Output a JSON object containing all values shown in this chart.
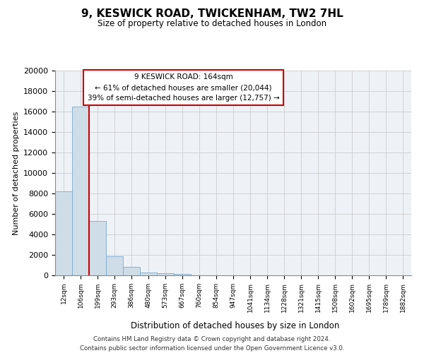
{
  "title": "9, KESWICK ROAD, TWICKENHAM, TW2 7HL",
  "subtitle": "Size of property relative to detached houses in London",
  "xlabel": "Distribution of detached houses by size in London",
  "ylabel": "Number of detached properties",
  "bar_labels": [
    "12sqm",
    "106sqm",
    "199sqm",
    "293sqm",
    "386sqm",
    "480sqm",
    "573sqm",
    "667sqm",
    "760sqm",
    "854sqm",
    "947sqm",
    "1041sqm",
    "1134sqm",
    "1228sqm",
    "1321sqm",
    "1415sqm",
    "1508sqm",
    "1602sqm",
    "1695sqm",
    "1789sqm",
    "1882sqm"
  ],
  "bar_values": [
    8200,
    16500,
    5300,
    1850,
    800,
    300,
    200,
    150,
    0,
    0,
    0,
    0,
    0,
    0,
    0,
    0,
    0,
    0,
    0,
    0,
    0
  ],
  "bar_color": "#cfdde8",
  "bar_edge_color": "#7aaacc",
  "vline_color": "#cc0000",
  "vline_pos": 1.5,
  "annotation_title": "9 KESWICK ROAD: 164sqm",
  "annotation_line1": "← 61% of detached houses are smaller (20,044)",
  "annotation_line2": "39% of semi-detached houses are larger (12,757) →",
  "annotation_box_color": "#ffffff",
  "annotation_box_edge": "#cc0000",
  "ylim": [
    0,
    20000
  ],
  "yticks": [
    0,
    2000,
    4000,
    6000,
    8000,
    10000,
    12000,
    14000,
    16000,
    18000,
    20000
  ],
  "grid_color": "#cccccc",
  "background_color": "#eef2f7",
  "footer_line1": "Contains HM Land Registry data © Crown copyright and database right 2024.",
  "footer_line2": "Contains public sector information licensed under the Open Government Licence v3.0."
}
